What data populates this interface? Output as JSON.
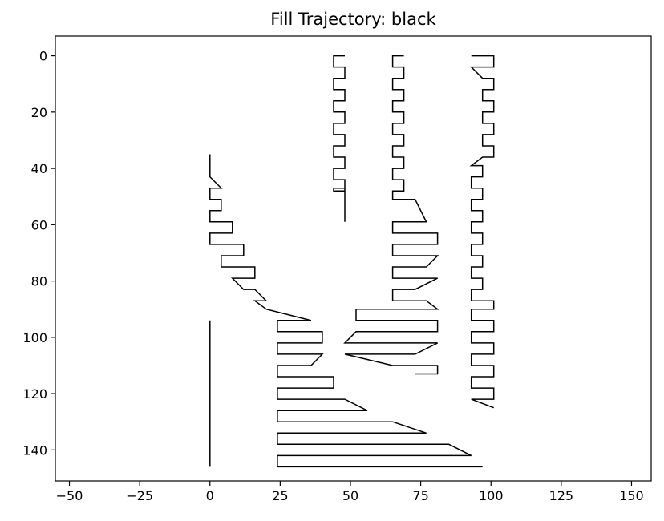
{
  "chart_data": {
    "type": "line",
    "title": "Fill Trajectory: black",
    "xlabel": "",
    "ylabel": "",
    "xlim": [
      -55,
      157
    ],
    "ylim": [
      151,
      -7
    ],
    "y_inverted": true,
    "grid": false,
    "legend": "none",
    "line_color": "#000000",
    "xticks": [
      -50,
      -25,
      0,
      25,
      50,
      75,
      100,
      125,
      150
    ],
    "xtick_labels": [
      "−50",
      "−25",
      "0",
      "25",
      "50",
      "75",
      "100",
      "125",
      "150"
    ],
    "yticks": [
      0,
      20,
      40,
      60,
      80,
      100,
      120,
      140
    ],
    "ytick_labels": [
      "0",
      "20",
      "40",
      "60",
      "80",
      "100",
      "120",
      "140"
    ],
    "series": [
      {
        "points": [
          [
            48,
            0
          ],
          [
            44,
            0
          ],
          [
            44,
            4
          ],
          [
            48,
            4
          ],
          [
            48,
            8
          ],
          [
            44,
            8
          ],
          [
            44,
            12
          ],
          [
            48,
            12
          ],
          [
            48,
            16
          ],
          [
            44,
            16
          ],
          [
            44,
            20
          ],
          [
            48,
            20
          ],
          [
            48,
            24
          ],
          [
            44,
            24
          ],
          [
            44,
            28
          ],
          [
            48,
            28
          ],
          [
            48,
            32
          ],
          [
            44,
            32
          ],
          [
            44,
            36
          ],
          [
            48,
            36
          ],
          [
            48,
            40
          ],
          [
            44,
            40
          ],
          [
            44,
            44
          ],
          [
            48,
            44
          ],
          [
            48,
            48
          ],
          [
            44,
            48
          ],
          [
            44,
            47
          ],
          [
            48,
            47
          ],
          [
            48,
            59
          ]
        ]
      },
      {
        "points": [
          [
            69,
            0
          ],
          [
            65,
            0
          ],
          [
            65,
            4
          ],
          [
            69,
            4
          ],
          [
            69,
            8
          ],
          [
            65,
            8
          ],
          [
            65,
            12
          ],
          [
            69,
            12
          ],
          [
            69,
            16
          ],
          [
            65,
            16
          ],
          [
            65,
            20
          ],
          [
            69,
            20
          ],
          [
            69,
            24
          ],
          [
            65,
            24
          ],
          [
            65,
            28
          ],
          [
            69,
            28
          ],
          [
            69,
            32
          ],
          [
            65,
            32
          ],
          [
            65,
            36
          ],
          [
            69,
            36
          ],
          [
            69,
            40
          ],
          [
            65,
            40
          ],
          [
            65,
            44
          ],
          [
            69,
            44
          ],
          [
            69,
            48
          ],
          [
            65,
            48
          ],
          [
            65,
            51
          ],
          [
            73,
            51
          ],
          [
            77,
            59
          ],
          [
            65,
            59
          ],
          [
            65,
            63
          ],
          [
            81,
            63
          ],
          [
            81,
            67
          ],
          [
            65,
            67
          ],
          [
            65,
            71
          ],
          [
            81,
            71
          ],
          [
            77,
            75
          ],
          [
            65,
            75
          ],
          [
            65,
            79
          ],
          [
            81,
            79
          ],
          [
            73,
            83
          ],
          [
            65,
            83
          ],
          [
            65,
            87
          ],
          [
            77,
            87
          ],
          [
            81,
            90
          ],
          [
            52,
            90
          ],
          [
            52,
            94
          ],
          [
            81,
            94
          ],
          [
            81,
            98
          ],
          [
            52,
            98
          ],
          [
            48,
            102
          ],
          [
            81,
            102
          ],
          [
            73,
            106
          ],
          [
            48,
            106
          ],
          [
            65,
            110
          ],
          [
            81,
            110
          ],
          [
            81,
            113
          ],
          [
            73,
            113
          ]
        ]
      },
      {
        "points": [
          [
            93,
            0
          ],
          [
            101,
            0
          ],
          [
            101,
            4
          ],
          [
            93,
            4
          ],
          [
            97,
            8
          ],
          [
            101,
            8
          ],
          [
            101,
            12
          ],
          [
            97,
            12
          ],
          [
            97,
            16
          ],
          [
            101,
            16
          ],
          [
            101,
            20
          ],
          [
            97,
            20
          ],
          [
            97,
            24
          ],
          [
            101,
            24
          ],
          [
            101,
            28
          ],
          [
            97,
            28
          ],
          [
            97,
            32
          ],
          [
            101,
            32
          ],
          [
            101,
            36
          ],
          [
            97,
            36
          ],
          [
            93,
            39
          ],
          [
            97,
            39
          ],
          [
            97,
            43
          ],
          [
            93,
            43
          ],
          [
            93,
            47
          ],
          [
            97,
            47
          ],
          [
            97,
            51
          ],
          [
            93,
            51
          ],
          [
            93,
            55
          ],
          [
            97,
            55
          ],
          [
            97,
            59
          ],
          [
            93,
            59
          ],
          [
            93,
            63
          ],
          [
            97,
            63
          ],
          [
            97,
            67
          ],
          [
            93,
            67
          ],
          [
            93,
            71
          ],
          [
            97,
            71
          ],
          [
            97,
            75
          ],
          [
            93,
            75
          ],
          [
            93,
            79
          ],
          [
            97,
            79
          ],
          [
            97,
            83
          ],
          [
            93,
            83
          ],
          [
            93,
            87
          ],
          [
            101,
            87
          ],
          [
            101,
            90
          ],
          [
            93,
            90
          ],
          [
            93,
            94
          ],
          [
            101,
            94
          ],
          [
            101,
            98
          ],
          [
            93,
            98
          ],
          [
            93,
            102
          ],
          [
            101,
            102
          ],
          [
            101,
            106
          ],
          [
            93,
            106
          ],
          [
            93,
            110
          ],
          [
            101,
            110
          ],
          [
            101,
            114
          ],
          [
            93,
            114
          ],
          [
            93,
            118
          ],
          [
            101,
            118
          ],
          [
            101,
            122
          ],
          [
            93,
            122
          ],
          [
            101,
            125
          ]
        ]
      },
      {
        "points": [
          [
            0,
            35
          ],
          [
            0,
            43
          ],
          [
            4,
            47
          ],
          [
            0,
            47
          ],
          [
            0,
            51
          ],
          [
            4,
            51
          ],
          [
            4,
            55
          ],
          [
            0,
            55
          ],
          [
            0,
            59
          ],
          [
            8,
            59
          ],
          [
            8,
            63
          ],
          [
            0,
            63
          ],
          [
            0,
            67
          ],
          [
            12,
            67
          ],
          [
            12,
            71
          ],
          [
            4,
            71
          ],
          [
            4,
            75
          ],
          [
            16,
            75
          ],
          [
            16,
            79
          ],
          [
            8,
            79
          ],
          [
            12,
            83
          ],
          [
            16,
            83
          ],
          [
            20,
            87
          ],
          [
            16,
            87
          ],
          [
            20,
            90
          ],
          [
            36,
            94
          ]
        ]
      },
      {
        "points": [
          [
            36,
            94
          ],
          [
            24,
            94
          ],
          [
            24,
            98
          ],
          [
            40,
            98
          ],
          [
            40,
            102
          ],
          [
            24,
            102
          ],
          [
            24,
            106
          ],
          [
            40,
            106
          ],
          [
            40,
            106
          ],
          [
            36,
            110
          ],
          [
            24,
            110
          ],
          [
            24,
            114
          ],
          [
            44,
            114
          ],
          [
            44,
            118
          ],
          [
            40,
            118
          ],
          [
            24,
            118
          ],
          [
            24,
            122
          ],
          [
            48,
            122
          ],
          [
            56,
            126
          ],
          [
            24,
            126
          ],
          [
            24,
            130
          ],
          [
            65,
            130
          ],
          [
            77,
            134
          ],
          [
            24,
            134
          ],
          [
            24,
            138
          ],
          [
            85,
            138
          ],
          [
            93,
            142
          ],
          [
            24,
            142
          ],
          [
            24,
            146
          ],
          [
            97,
            146
          ]
        ]
      },
      {
        "points": [
          [
            0,
            94
          ],
          [
            0,
            146
          ]
        ]
      }
    ]
  }
}
